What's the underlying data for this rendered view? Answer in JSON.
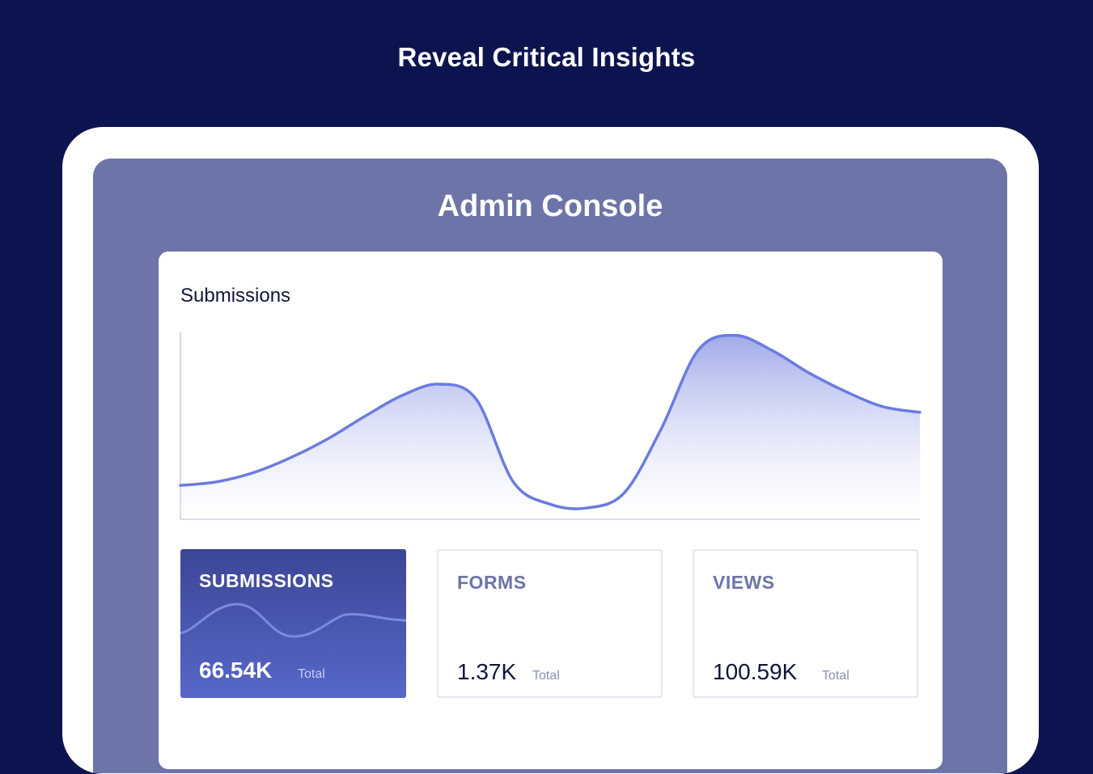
{
  "headline": "Reveal Critical Insights",
  "console": {
    "title": "Admin Console"
  },
  "chart": {
    "title": "Submissions"
  },
  "chart_data": {
    "type": "area",
    "title": "Submissions",
    "xlabel": "",
    "ylabel": "",
    "x": [
      0,
      1,
      2,
      3,
      4,
      5,
      6,
      7,
      8,
      9,
      10,
      11,
      12,
      13,
      14,
      15,
      16,
      17,
      18,
      19,
      20
    ],
    "ylim": [
      0,
      100
    ],
    "series": [
      {
        "values": [
          18,
          20,
          25,
          33,
          43,
          55,
          66,
          72,
          64,
          20,
          8,
          6,
          14,
          48,
          90,
          98,
          90,
          78,
          68,
          60,
          57
        ]
      }
    ],
    "grid": false,
    "legend": "none"
  },
  "stats": [
    {
      "label": "SUBMISSIONS",
      "value": "66.54K",
      "sub": "Total",
      "active": true
    },
    {
      "label": "FORMS",
      "value": "1.37K",
      "sub": "Total",
      "active": false
    },
    {
      "label": "VIEWS",
      "value": "100.59K",
      "sub": "Total",
      "active": false
    }
  ],
  "colors": {
    "background": "#0c1450",
    "screen": "#6c74a8",
    "line": "#6a7ce0",
    "accent_card_top": "#3c4696",
    "accent_card_bottom": "#5767c8"
  }
}
